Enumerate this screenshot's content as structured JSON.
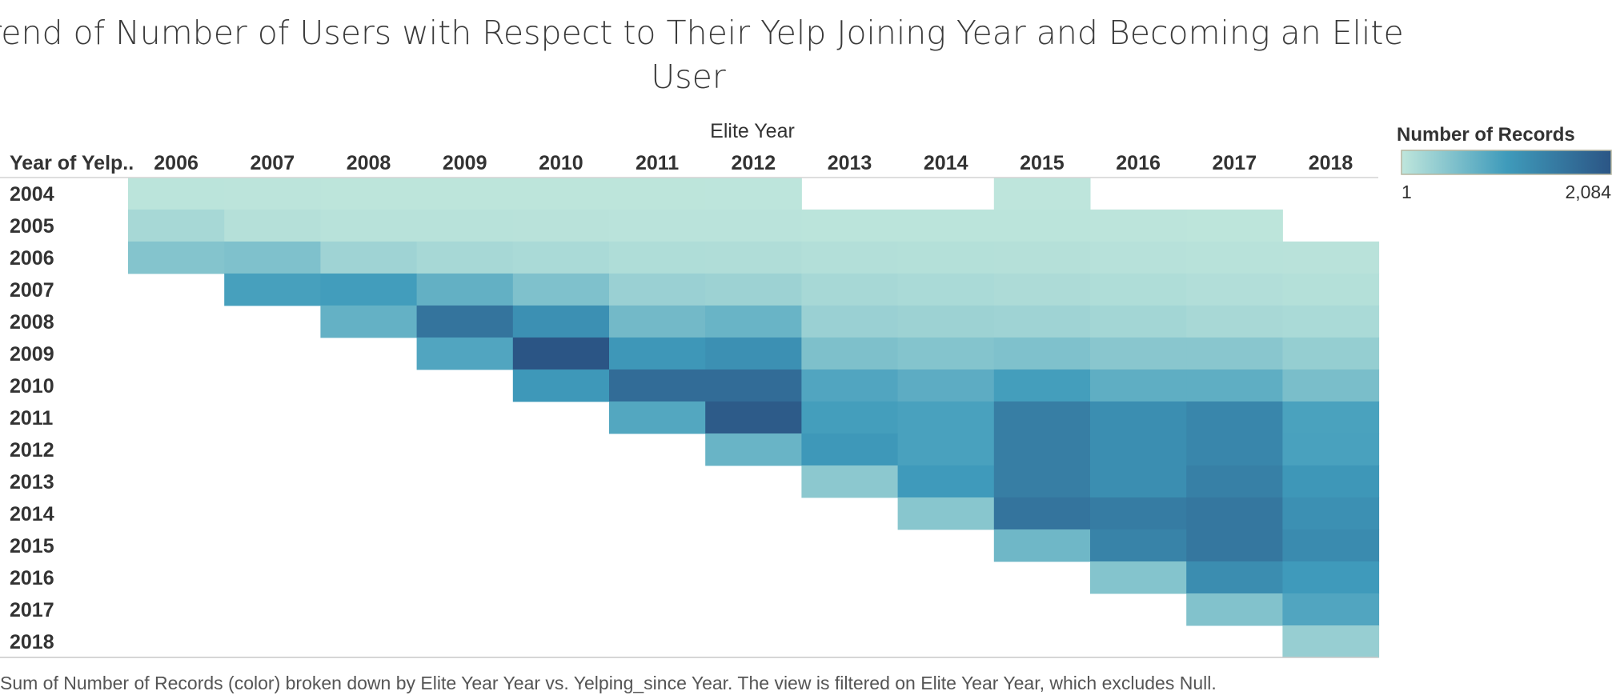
{
  "chart_data": {
    "type": "heatmap",
    "title": "Trend of Number of Users with Respect to Their Yelp Joining Year and Becoming an Elite User",
    "title_lines": [
      "Trend of Number of Users with Respect to Their Yelp Joining Year and Becoming an Elite",
      "User"
    ],
    "xlabel": "Elite Year",
    "ylabel": "Year of Yelp..",
    "x": [
      "2006",
      "2007",
      "2008",
      "2009",
      "2010",
      "2011",
      "2012",
      "2013",
      "2014",
      "2015",
      "2016",
      "2017",
      "2018"
    ],
    "y": [
      "2004",
      "2005",
      "2006",
      "2007",
      "2008",
      "2009",
      "2010",
      "2011",
      "2012",
      "2013",
      "2014",
      "2015",
      "2016",
      "2017",
      "2018"
    ],
    "values": [
      [
        30,
        25,
        20,
        20,
        20,
        20,
        15,
        null,
        null,
        10,
        null,
        null,
        null
      ],
      [
        200,
        80,
        60,
        55,
        50,
        45,
        40,
        35,
        30,
        30,
        25,
        20,
        null
      ],
      [
        480,
        520,
        260,
        200,
        170,
        130,
        120,
        100,
        90,
        80,
        70,
        60,
        50
      ],
      [
        null,
        980,
        1020,
        750,
        520,
        300,
        280,
        200,
        170,
        150,
        130,
        110,
        90
      ],
      [
        null,
        null,
        740,
        1620,
        1200,
        620,
        700,
        300,
        280,
        260,
        230,
        190,
        170
      ],
      [
        null,
        null,
        null,
        900,
        2084,
        1100,
        1200,
        530,
        480,
        520,
        440,
        440,
        340
      ],
      [
        null,
        null,
        null,
        null,
        1080,
        1740,
        1740,
        900,
        800,
        1000,
        780,
        780,
        560
      ],
      [
        null,
        null,
        null,
        null,
        null,
        880,
        2000,
        1000,
        960,
        1480,
        1240,
        1360,
        950
      ],
      [
        null,
        null,
        null,
        null,
        null,
        null,
        700,
        1080,
        960,
        1480,
        1240,
        1360,
        960
      ],
      [
        null,
        null,
        null,
        null,
        null,
        null,
        null,
        420,
        1050,
        1480,
        1240,
        1440,
        1100
      ],
      [
        null,
        null,
        null,
        null,
        null,
        null,
        null,
        null,
        450,
        1620,
        1500,
        1580,
        1200
      ],
      [
        null,
        null,
        null,
        null,
        null,
        null,
        null,
        null,
        null,
        650,
        1400,
        1580,
        1280
      ],
      [
        null,
        null,
        null,
        null,
        null,
        null,
        null,
        null,
        null,
        null,
        480,
        1250,
        1050
      ],
      [
        null,
        null,
        null,
        null,
        null,
        null,
        null,
        null,
        null,
        null,
        null,
        500,
        900
      ],
      [
        null,
        null,
        null,
        null,
        null,
        null,
        null,
        null,
        null,
        null,
        null,
        null,
        330
      ]
    ],
    "color_scale": {
      "title": "Number of Records",
      "min": 1,
      "max": 2084,
      "min_label": "1",
      "max_label": "2,084",
      "low_color": "#bfe6dc",
      "mid_color": "#3f9bbb",
      "high_color": "#2b5585"
    },
    "caption": "Sum of Number of Records (color) broken down by Elite Year Year vs. Yelping_since Year.  The view is filtered on Elite Year Year, which excludes Null."
  }
}
